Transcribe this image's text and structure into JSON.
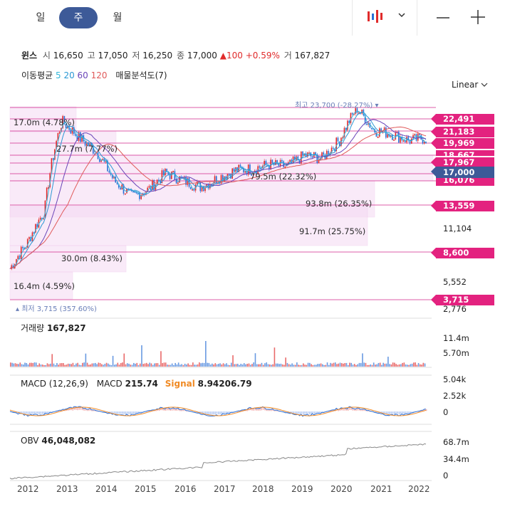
{
  "tabs": {
    "day": "일",
    "week": "주",
    "month": "월",
    "active": "week"
  },
  "toolbar": {
    "chart_type_icon": "candlestick-icon",
    "dropdown_icon": "chevron-down-icon",
    "zoom_out_icon": "minus-icon",
    "zoom_in_icon": "plus-icon"
  },
  "stock": {
    "name": "윈스",
    "open_label": "시",
    "open": "16,650",
    "high_label": "고",
    "high": "17,050",
    "low_label": "저",
    "low": "16,250",
    "close_label": "종",
    "close": "17,000",
    "change": "▲100",
    "change_pct": "+0.59%",
    "volume_label": "거",
    "volume": "167,827"
  },
  "indicators": {
    "ma_label": "이동평균",
    "ma": [
      {
        "period": "5",
        "color": "#34b7d9"
      },
      {
        "period": "20",
        "color": "#2a98d4"
      },
      {
        "period": "60",
        "color": "#6a45b8"
      },
      {
        "period": "120",
        "color": "#e05a5a"
      }
    ],
    "profile_label": "매물분석도(7)"
  },
  "scale_label": "Linear",
  "price_axis": [
    "11,104",
    "5,552",
    "2,776"
  ],
  "price_tags": [
    "22,491",
    "21,183",
    "19,969",
    "18,667",
    "17,967",
    "16,076",
    "13,559",
    "8,600",
    "3,715"
  ],
  "current_price_tag": "17,000",
  "high_marker": {
    "label": "최고",
    "value": "23,700 (-28.27%)"
  },
  "low_marker": {
    "label": "최저",
    "value": "3,715 (357.60%)"
  },
  "volume_profile": [
    "17.0m (4.78%)",
    "27.7m (7.77%)",
    "79.5m (22.32%)",
    "93.8m (26.35%)",
    "91.7m (25.75%)",
    "30.0m (8.43%)",
    "16.4m (4.59%)"
  ],
  "volume_pane": {
    "title": "거래량",
    "value": "167,827",
    "axis": [
      "11.4m",
      "5.70m"
    ]
  },
  "macd_pane": {
    "title": "MACD (12,26,9)",
    "macd_label": "MACD",
    "macd_value": "215.74",
    "signal_label": "Signal",
    "signal_value": "8.94206.79",
    "axis": [
      "5.04k",
      "2.52k",
      "0"
    ]
  },
  "obv_pane": {
    "title": "OBV",
    "value": "46,048,082",
    "axis": [
      "68.7m",
      "34.4m",
      "0"
    ]
  },
  "years": [
    "2012",
    "2013",
    "2014",
    "2015",
    "2016",
    "2017",
    "2018",
    "2019",
    "2020",
    "2021",
    "2022"
  ],
  "colors": {
    "accent": "#3d5a98",
    "tag": "#e3227f",
    "up": "#e02b2b",
    "down": "#2a6fd6",
    "signal": "#f08a24"
  },
  "chart_data": {
    "type": "line",
    "x": [
      "2012-01",
      "2012-07",
      "2013-01",
      "2013-05",
      "2013-09",
      "2014-01",
      "2014-05",
      "2014-09",
      "2015-01",
      "2015-07",
      "2016-01",
      "2016-07",
      "2017-01",
      "2017-07",
      "2018-01",
      "2018-07",
      "2019-01",
      "2019-07",
      "2020-01",
      "2020-07",
      "2020-09",
      "2021-01",
      "2021-07",
      "2022-01",
      "2022-04"
    ],
    "series": [
      {
        "name": "종",
        "values": [
          3900,
          5200,
          7500,
          20500,
          17000,
          14500,
          10500,
          8800,
          9500,
          11500,
          10500,
          9800,
          10800,
          11800,
          12000,
          12600,
          12300,
          14000,
          13500,
          16500,
          23700,
          18500,
          17800,
          16500,
          17000
        ]
      }
    ],
    "ylim": [
      2776,
      23700
    ]
  }
}
